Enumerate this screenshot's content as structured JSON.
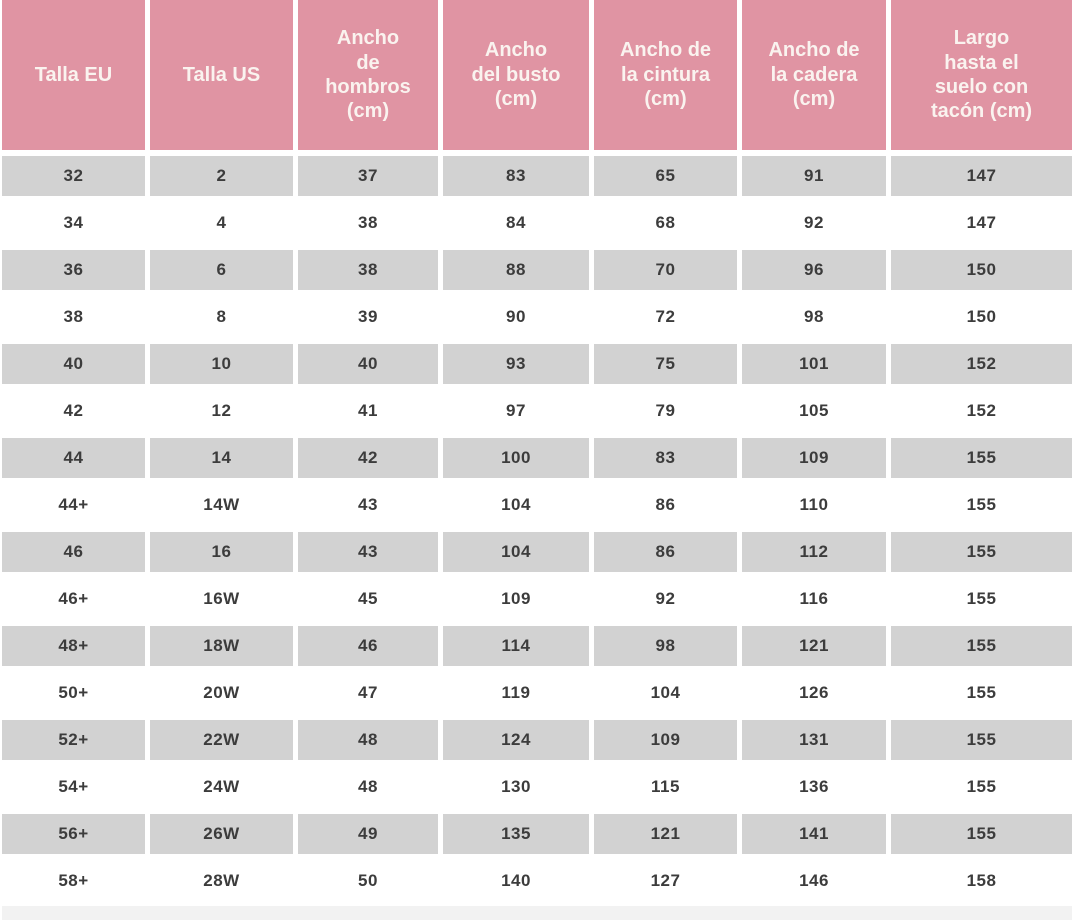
{
  "chart_data": {
    "type": "table",
    "columns": [
      "Talla EU",
      "Talla US",
      "Ancho\nde\nhombros\n(cm)",
      "Ancho\ndel busto\n(cm)",
      "Ancho de\nla cintura\n(cm)",
      "Ancho de\nla cadera\n(cm)",
      "Largo\nhasta el\nsuelo con\ntacón (cm)"
    ],
    "rows": [
      [
        "32",
        "2",
        "37",
        "83",
        "65",
        "91",
        "147"
      ],
      [
        "34",
        "4",
        "38",
        "84",
        "68",
        "92",
        "147"
      ],
      [
        "36",
        "6",
        "38",
        "88",
        "70",
        "96",
        "150"
      ],
      [
        "38",
        "8",
        "39",
        "90",
        "72",
        "98",
        "150"
      ],
      [
        "40",
        "10",
        "40",
        "93",
        "75",
        "101",
        "152"
      ],
      [
        "42",
        "12",
        "41",
        "97",
        "79",
        "105",
        "152"
      ],
      [
        "44",
        "14",
        "42",
        "100",
        "83",
        "109",
        "155"
      ],
      [
        "44+",
        "14W",
        "43",
        "104",
        "86",
        "110",
        "155"
      ],
      [
        "46",
        "16",
        "43",
        "104",
        "86",
        "112",
        "155"
      ],
      [
        "46+",
        "16W",
        "45",
        "109",
        "92",
        "116",
        "155"
      ],
      [
        "48+",
        "18W",
        "46",
        "114",
        "98",
        "121",
        "155"
      ],
      [
        "50+",
        "20W",
        "47",
        "119",
        "104",
        "126",
        "155"
      ],
      [
        "52+",
        "22W",
        "48",
        "124",
        "109",
        "131",
        "155"
      ],
      [
        "54+",
        "24W",
        "48",
        "130",
        "115",
        "136",
        "155"
      ],
      [
        "56+",
        "26W",
        "49",
        "135",
        "121",
        "141",
        "155"
      ],
      [
        "58+",
        "28W",
        "50",
        "140",
        "127",
        "146",
        "158"
      ]
    ]
  },
  "colors": {
    "header_bg": "#e094a3",
    "header_text": "#faf3ef",
    "stripe_bg": "#d2d2d2",
    "body_text": "#3c3c3c",
    "footer_strip": "#f2f2f2",
    "page_bg": "#ffffff"
  }
}
